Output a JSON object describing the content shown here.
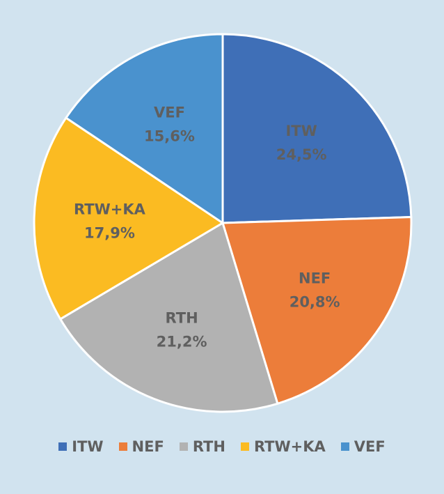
{
  "chart_data": {
    "type": "pie",
    "categories": [
      "ITW",
      "NEF",
      "RTH",
      "RTW+KA",
      "VEF"
    ],
    "values": [
      24.5,
      20.8,
      21.2,
      17.9,
      15.6
    ],
    "value_labels": [
      "24,5%",
      "20,8%",
      "21,2%",
      "17,9%",
      "15,6%"
    ],
    "colors": [
      "#3f6fb7",
      "#ec7d3a",
      "#b2b2b2",
      "#fbbb22",
      "#4a92ce"
    ],
    "start": "top",
    "direction": "clockwise",
    "legend_position": "bottom"
  }
}
